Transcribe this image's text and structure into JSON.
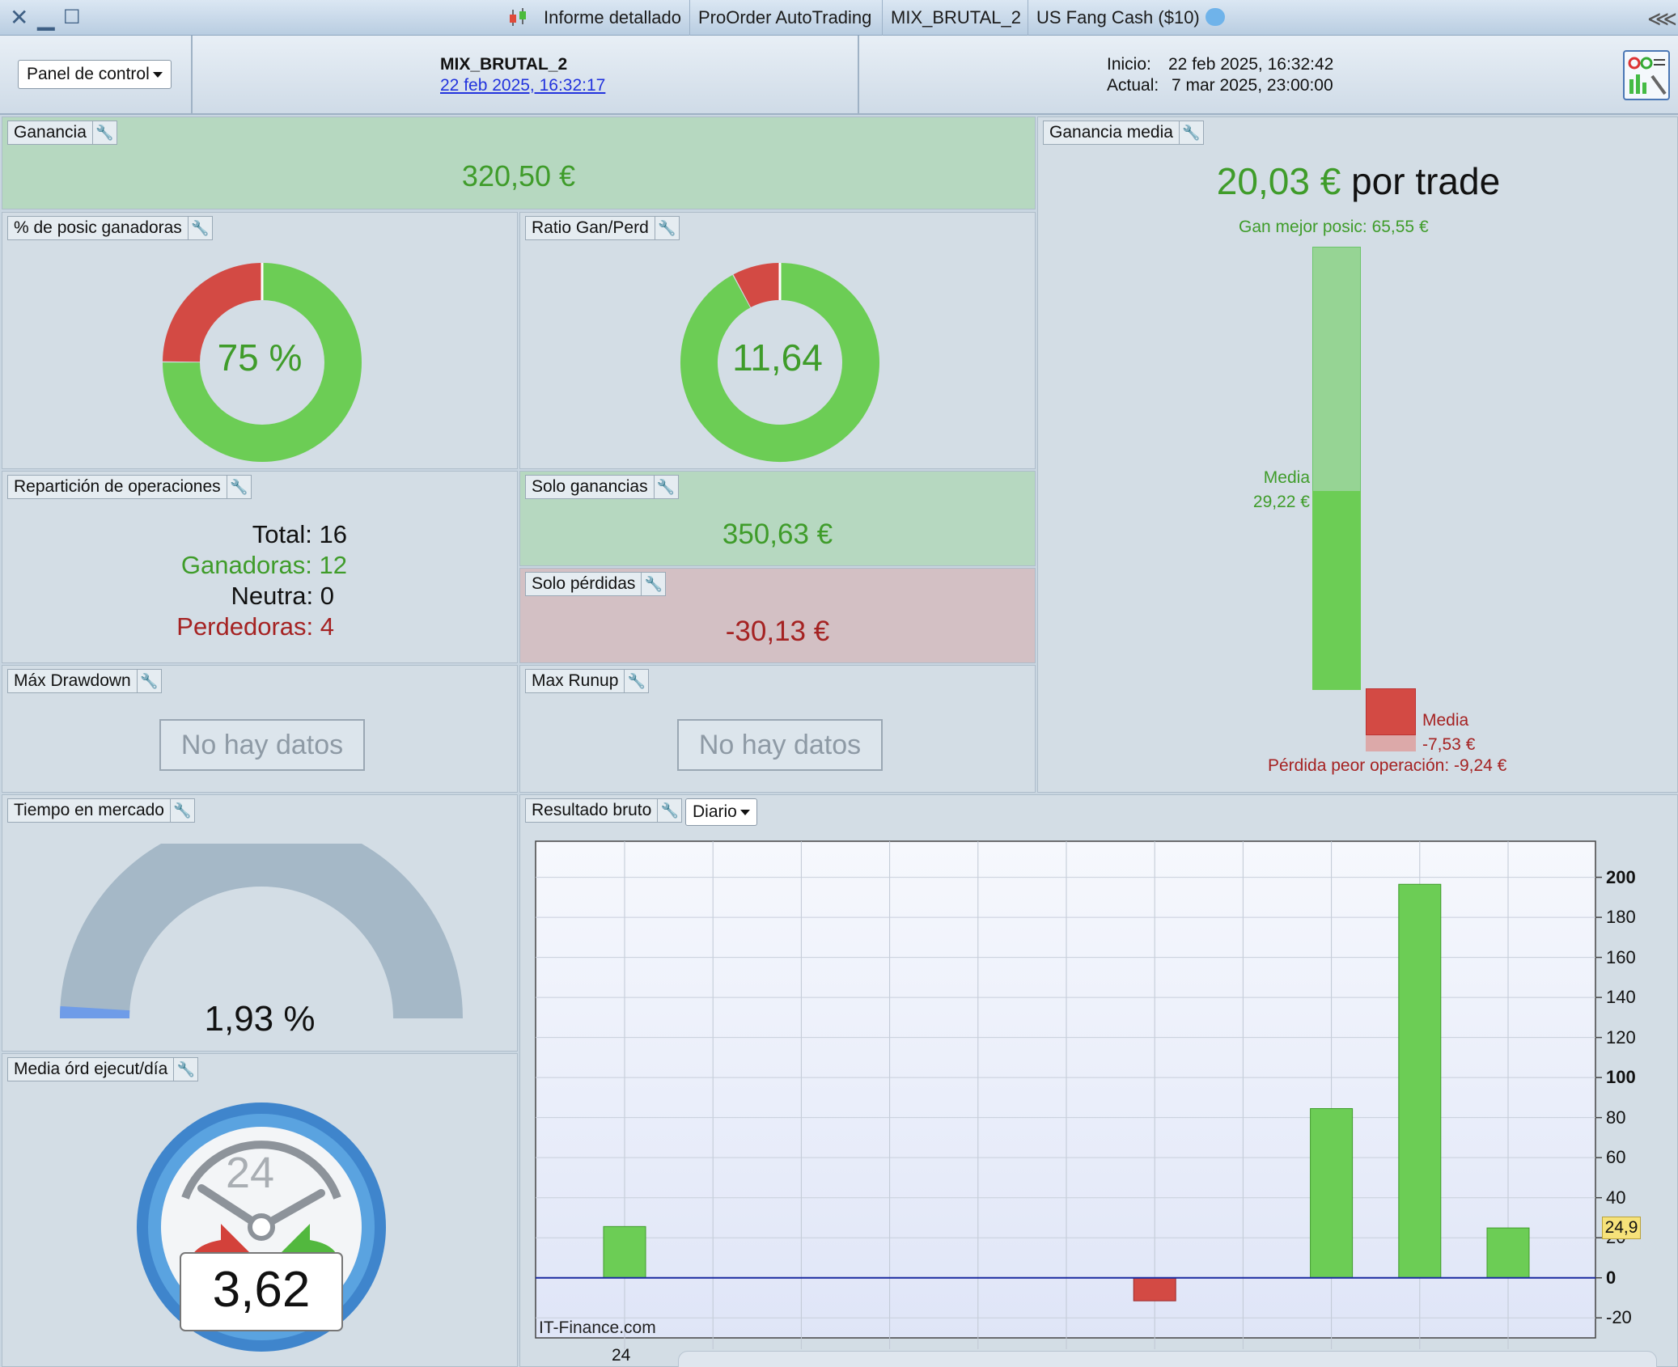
{
  "titlebar": {
    "tabs": [
      "Informe detallado",
      "ProOrder AutoTrading",
      "MIX_BRUTAL_2",
      "US Fang Cash ($10)"
    ]
  },
  "header": {
    "panel_select": "Panel de control",
    "strategy_name": "MIX_BRUTAL_2",
    "strategy_date": "22 feb 2025, 16:32:17",
    "inicio_label": "Inicio:",
    "inicio_value": "22 feb 2025, 16:32:42",
    "actual_label": "Actual:",
    "actual_value": "7 mar 2025, 23:00:00"
  },
  "ganancia": {
    "title": "Ganancia",
    "value": "320,50 €"
  },
  "pct_ganadoras": {
    "title": "% de posic ganadoras",
    "value": "75 %",
    "fraction": 0.75
  },
  "ratio": {
    "title": "Ratio Gan/Perd",
    "value": "11,64",
    "green_fraction": 0.921
  },
  "reparticion": {
    "title": "Repartición de operaciones",
    "total": "Total: 16",
    "ganadoras": "Ganadoras: 12",
    "neutra": "Neutra: 0",
    "perdedoras": "Perdedoras: 4"
  },
  "solo_ganancias": {
    "title": "Solo ganancias",
    "value": "350,63 €"
  },
  "solo_perdidas": {
    "title": "Solo pérdidas",
    "value": "-30,13 €"
  },
  "max_drawdown": {
    "title": "Máx Drawdown",
    "empty": "No hay datos"
  },
  "max_runup": {
    "title": "Max Runup",
    "empty": "No hay datos"
  },
  "ganancia_media": {
    "title": "Ganancia media",
    "value": "20,03 €",
    "suffix": "por trade",
    "best": "Gan mejor posic: 65,55 €",
    "media_gain_label": "Media",
    "media_gain_value": "29,22 €",
    "media_loss_label": "Media",
    "media_loss_value": "-7,53 €",
    "worst": "Pérdida peor operación: -9,24 €"
  },
  "tiempo_mercado": {
    "title": "Tiempo en mercado",
    "value": "1,93 %",
    "fraction": 0.0193
  },
  "media_ordenes": {
    "title": "Media órd ejecut/día",
    "value": "3,62",
    "clock_label": "24"
  },
  "resultado_bruto": {
    "title": "Resultado bruto",
    "period": "Diario",
    "watermark": "IT-Finance.com",
    "last_value": "24,9",
    "x_label": "24"
  },
  "chart_data": {
    "type": "bar",
    "title": "Resultado bruto",
    "ylim": [
      -30,
      218
    ],
    "yticks": [
      "200",
      "180",
      "160",
      "140",
      "120",
      "100",
      "80",
      "60",
      "40",
      "20",
      "0",
      "-20"
    ],
    "bold_ticks": [
      "200",
      "100",
      "0"
    ],
    "x_tick_labels": [
      "24"
    ],
    "values": [
      25.6,
      0,
      0,
      0,
      0,
      0,
      -11.5,
      0,
      84.5,
      196.5,
      24.9
    ],
    "colors": {
      "positive": "#6ccd55",
      "negative": "#d34a44",
      "zero_line": "#1a2aa0"
    }
  },
  "colors": {
    "green_text": "#3f9c2a",
    "red_text": "#a52222",
    "accent_blue": "#2a4fbf"
  }
}
